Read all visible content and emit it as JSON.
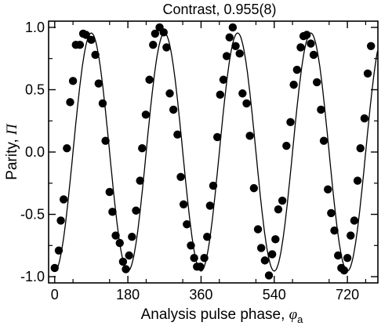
{
  "chart_data": {
    "type": "scatter",
    "title": "Contrast, 0.955(8)",
    "xlabel": "Analysis pulse phase, ",
    "xlabel_symbol": "φ",
    "xlabel_subscript": "a",
    "ylabel": "Parity, ",
    "ylabel_symbol": "Π",
    "xlim": [
      -15,
      795
    ],
    "ylim": [
      -1.05,
      1.05
    ],
    "xticks": [
      0,
      180,
      360,
      540,
      720
    ],
    "yticks": [
      -1.0,
      -0.5,
      0.0,
      0.5,
      1.0
    ],
    "xtick_labels": [
      "0",
      "180",
      "360",
      "540",
      "720"
    ],
    "ytick_labels": [
      "-1.0",
      "-0.5",
      "0.0",
      "0.5",
      "1.0"
    ],
    "grid": false,
    "fit": {
      "contrast": 0.955,
      "period_deg": 180,
      "peak_phase_deg": 90,
      "phase_range": [
        0,
        795
      ]
    },
    "series": [
      {
        "points": [
          [
            0,
            -0.93
          ],
          [
            10,
            -0.79
          ],
          [
            15,
            -0.55
          ],
          [
            22,
            -0.38
          ],
          [
            30,
            0.03
          ],
          [
            38,
            0.4
          ],
          [
            45,
            0.57
          ],
          [
            52,
            0.86
          ],
          [
            62,
            0.86
          ],
          [
            70,
            0.95
          ],
          [
            77,
            0.94
          ],
          [
            90,
            0.9
          ],
          [
            100,
            0.78
          ],
          [
            108,
            0.55
          ],
          [
            118,
            0.39
          ],
          [
            125,
            0.09
          ],
          [
            135,
            -0.32
          ],
          [
            142,
            -0.48
          ],
          [
            150,
            -0.67
          ],
          [
            160,
            -0.73
          ],
          [
            168,
            -0.88
          ],
          [
            175,
            -0.94
          ],
          [
            183,
            -0.83
          ],
          [
            190,
            -0.68
          ],
          [
            200,
            -0.47
          ],
          [
            210,
            -0.23
          ],
          [
            215,
            0.03
          ],
          [
            224,
            0.3
          ],
          [
            233,
            0.58
          ],
          [
            242,
            0.86
          ],
          [
            247,
            0.95
          ],
          [
            258,
            1.0
          ],
          [
            268,
            0.96
          ],
          [
            275,
            0.84
          ],
          [
            283,
            0.47
          ],
          [
            292,
            0.34
          ],
          [
            302,
            0.14
          ],
          [
            310,
            -0.2
          ],
          [
            317,
            -0.42
          ],
          [
            325,
            -0.58
          ],
          [
            335,
            -0.75
          ],
          [
            343,
            -0.85
          ],
          [
            350,
            -0.92
          ],
          [
            358,
            -0.92
          ],
          [
            368,
            -0.85
          ],
          [
            375,
            -0.68
          ],
          [
            382,
            -0.43
          ],
          [
            390,
            -0.27
          ],
          [
            400,
            0.12
          ],
          [
            407,
            0.46
          ],
          [
            415,
            0.58
          ],
          [
            423,
            0.77
          ],
          [
            430,
            0.92
          ],
          [
            438,
            1.0
          ],
          [
            445,
            0.85
          ],
          [
            455,
            0.79
          ],
          [
            462,
            0.47
          ],
          [
            472,
            0.39
          ],
          [
            480,
            0.13
          ],
          [
            490,
            -0.29
          ],
          [
            500,
            -0.62
          ],
          [
            508,
            -0.77
          ],
          [
            517,
            -0.87
          ],
          [
            527,
            -0.99
          ],
          [
            535,
            -0.82
          ],
          [
            543,
            -0.7
          ],
          [
            550,
            -0.46
          ],
          [
            560,
            -0.39
          ],
          [
            570,
            0.05
          ],
          [
            580,
            0.24
          ],
          [
            588,
            0.54
          ],
          [
            596,
            0.66
          ],
          [
            605,
            0.84
          ],
          [
            612,
            0.93
          ],
          [
            620,
            0.94
          ],
          [
            630,
            0.87
          ],
          [
            637,
            0.78
          ],
          [
            645,
            0.56
          ],
          [
            655,
            0.34
          ],
          [
            662,
            0.09
          ],
          [
            672,
            -0.3
          ],
          [
            680,
            -0.49
          ],
          [
            688,
            -0.63
          ],
          [
            697,
            -0.83
          ],
          [
            705,
            -0.93
          ],
          [
            712,
            -0.95
          ],
          [
            720,
            -0.85
          ],
          [
            728,
            -0.67
          ],
          [
            737,
            -0.55
          ],
          [
            745,
            -0.23
          ],
          [
            752,
            0.03
          ],
          [
            762,
            0.27
          ],
          [
            770,
            0.63
          ],
          [
            778,
            0.85
          ]
        ]
      }
    ]
  }
}
